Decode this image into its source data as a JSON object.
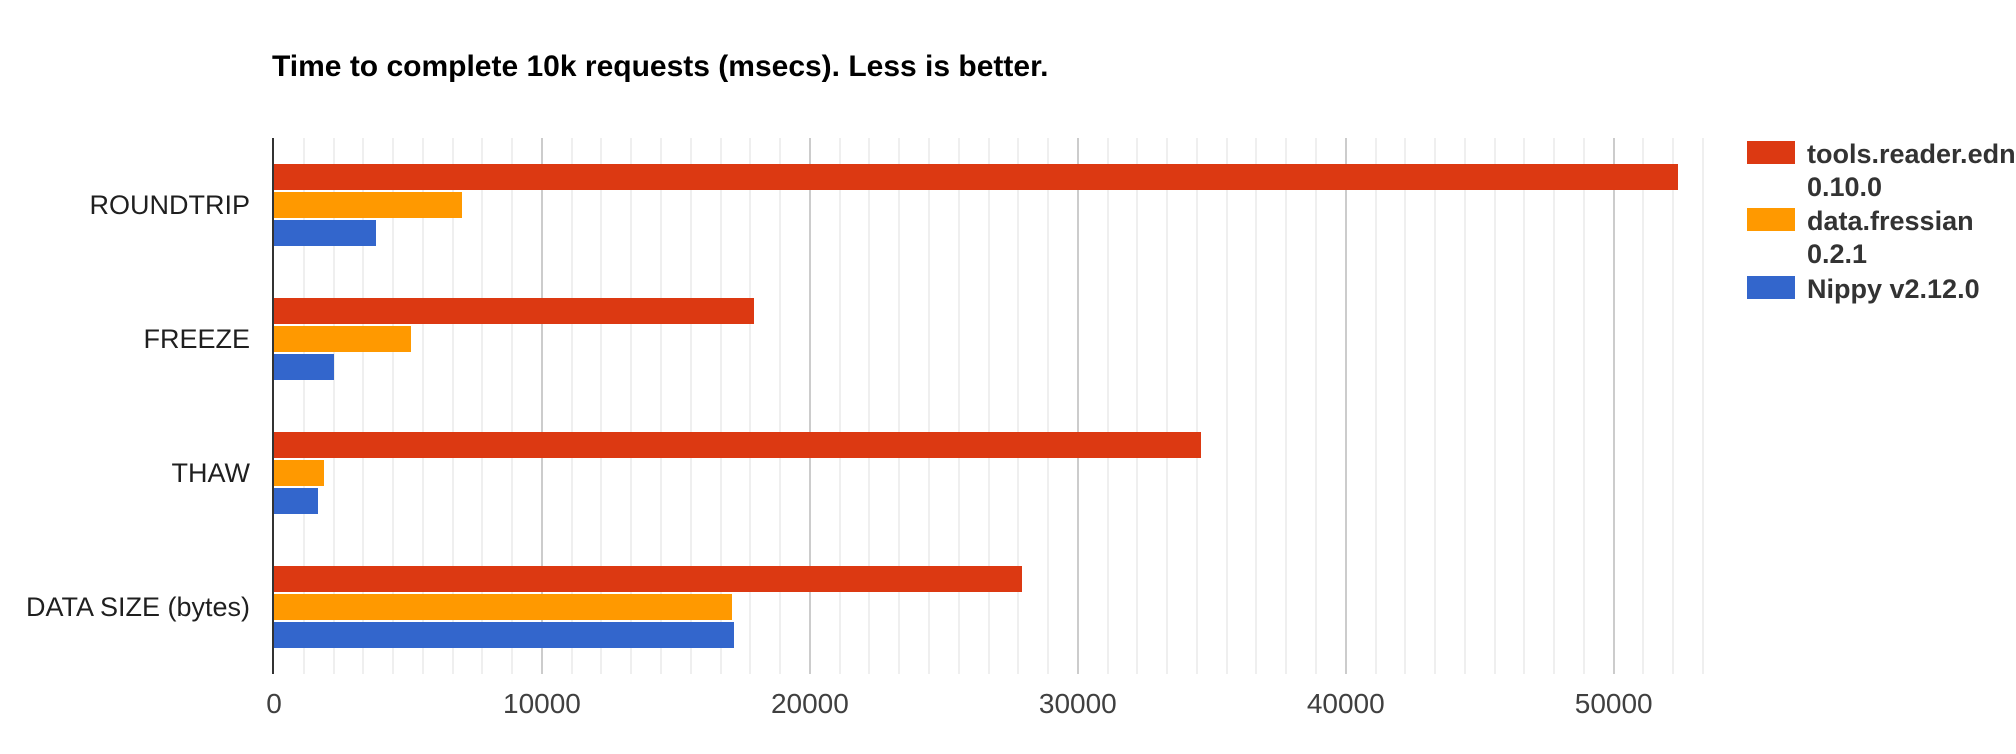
{
  "chart_data": {
    "type": "bar",
    "orientation": "horizontal",
    "title": "Time to complete 10k requests (msecs). Less is better.",
    "xlabel": "",
    "ylabel": "",
    "categories": [
      "ROUNDTRIP",
      "FREEZE",
      "THAW",
      "DATA SIZE (bytes)"
    ],
    "series": [
      {
        "name": "tools.reader.edn 0.10.0",
        "label_lines": [
          "tools.reader.edn",
          "0.10.0"
        ],
        "color": "#DC3912",
        "values": [
          52400,
          17900,
          34600,
          27900
        ]
      },
      {
        "name": "data.fressian 0.2.1",
        "label_lines": [
          "data.fressian",
          "0.2.1"
        ],
        "color": "#FF9900",
        "values": [
          7000,
          5100,
          1860,
          17100
        ]
      },
      {
        "name": "Nippy v2.12.0",
        "label_lines": [
          "Nippy v2.12.0"
        ],
        "color": "#3366CC",
        "values": [
          3790,
          2240,
          1650,
          17150
        ]
      }
    ],
    "x_axis": {
      "min": 0,
      "max": 53333,
      "ticks": [
        0,
        10000,
        20000,
        30000,
        40000,
        50000
      ],
      "minor_gridlines_per_major": 8
    },
    "legend_position": "right",
    "grid": true
  },
  "colors": {
    "axis": "#333333",
    "major_gridline": "#cccccc",
    "minor_gridline": "#efefef",
    "background": "#ffffff"
  }
}
